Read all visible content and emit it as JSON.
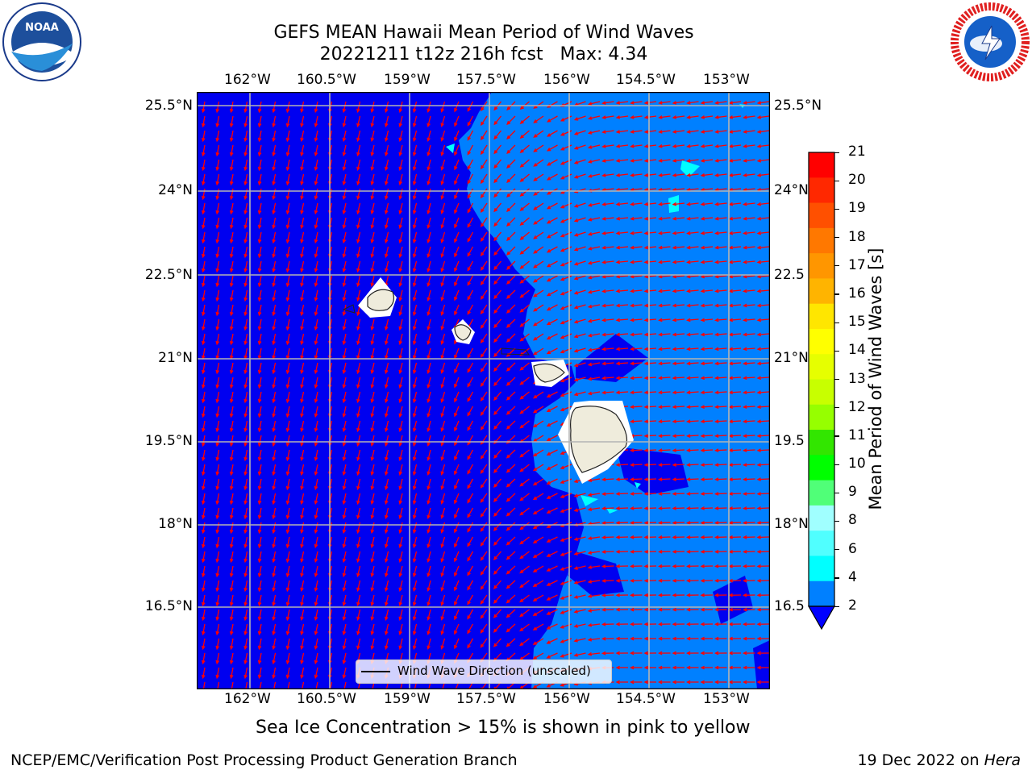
{
  "title": {
    "line1": "GEFS MEAN Hawaii Mean Period of Wind Waves",
    "line2": "20221211 t12z 216h fcst   Max: 4.34"
  },
  "logos": {
    "left": "NOAA",
    "right": "NATIONAL WEATHER SERVICE"
  },
  "map": {
    "lon_ticks": [
      "162°W",
      "160.5°W",
      "159°W",
      "157.5°W",
      "156°W",
      "154.5°W",
      "153°W"
    ],
    "lat_ticks": [
      "25.5°N",
      "24°N",
      "22.5°N",
      "21°N",
      "19.5°N",
      "18°N",
      "16.5°N"
    ],
    "lat_ticks_right": [
      "25.5°N",
      "24°N",
      "22.5",
      "21°N",
      "19.5",
      "18°N",
      "16.5"
    ],
    "legend": "Wind Wave Direction (unscaled)",
    "colors": {
      "below_2": "#0000f0",
      "band_2_4": "#0080ff",
      "band_4_6": "#00ffff",
      "land": "#efecdc",
      "arrow": "#ff0000",
      "grid": "#b4b4b4"
    }
  },
  "colorbar": {
    "label": "Mean Period of Wind Waves [s]",
    "ticks": [
      "21",
      "20",
      "19",
      "18",
      "17",
      "16",
      "15",
      "14",
      "13",
      "12",
      "11",
      "10",
      "9",
      "8",
      "6",
      "4",
      "2"
    ],
    "colors_top_to_bottom": [
      "#ff0000",
      "#ff2800",
      "#ff5000",
      "#ff7800",
      "#ff9600",
      "#ffb400",
      "#ffe600",
      "#ffff00",
      "#e6ff00",
      "#c8ff00",
      "#96ff00",
      "#32e600",
      "#00ff00",
      "#50ff78",
      "#a0ffff",
      "#50ffff",
      "#00ffff",
      "#0080ff"
    ],
    "under_color": "#0000ff"
  },
  "notes": {
    "sea_ice": "Sea Ice Concentration > 15% is shown in pink to yellow"
  },
  "footer": {
    "left": "NCEP/EMC/Verification Post Processing Product Generation Branch",
    "right_prefix": "19 Dec 2022 on ",
    "right_host": "Hera"
  }
}
